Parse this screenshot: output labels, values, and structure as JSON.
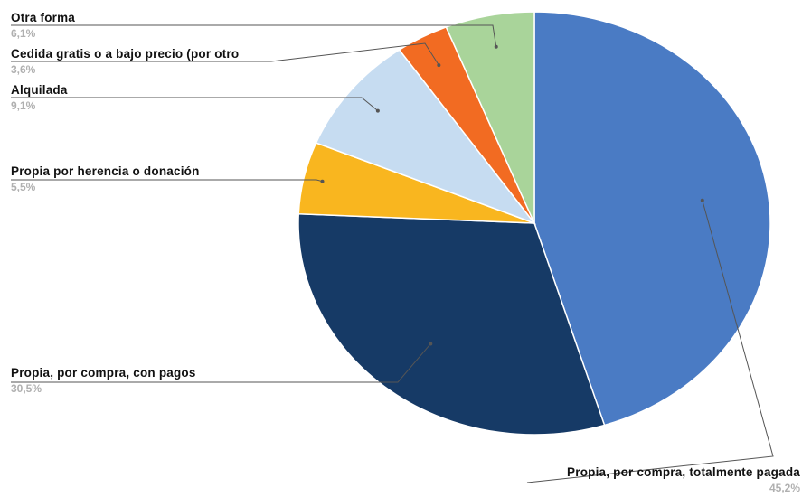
{
  "colors": {
    "leader": "#555555",
    "background": "#ffffff"
  },
  "chart_data": {
    "type": "pie",
    "title": "",
    "start_angle_deg": 0,
    "direction": "clockwise",
    "slices": [
      {
        "label": "Propia, por compra, totalmente pagada",
        "value": 45.2,
        "value_label": "45,2%",
        "color": "#4a7bc4"
      },
      {
        "label": "Propia, por compra, con pagos",
        "value": 30.5,
        "value_label": "30,5%",
        "color": "#163a66"
      },
      {
        "label": "Propia por herencia o donación",
        "value": 5.5,
        "value_label": "5,5%",
        "color": "#f9b61f"
      },
      {
        "label": "Alquilada",
        "value": 9.1,
        "value_label": "9,1%",
        "color": "#c6dcf1"
      },
      {
        "label": "Cedida gratis o a bajo precio (por otro",
        "value": 3.6,
        "value_label": "3,6%",
        "color": "#f26b22"
      },
      {
        "label": "Otra forma",
        "value": 6.1,
        "value_label": "6,1%",
        "color": "#a9d49a"
      }
    ]
  }
}
